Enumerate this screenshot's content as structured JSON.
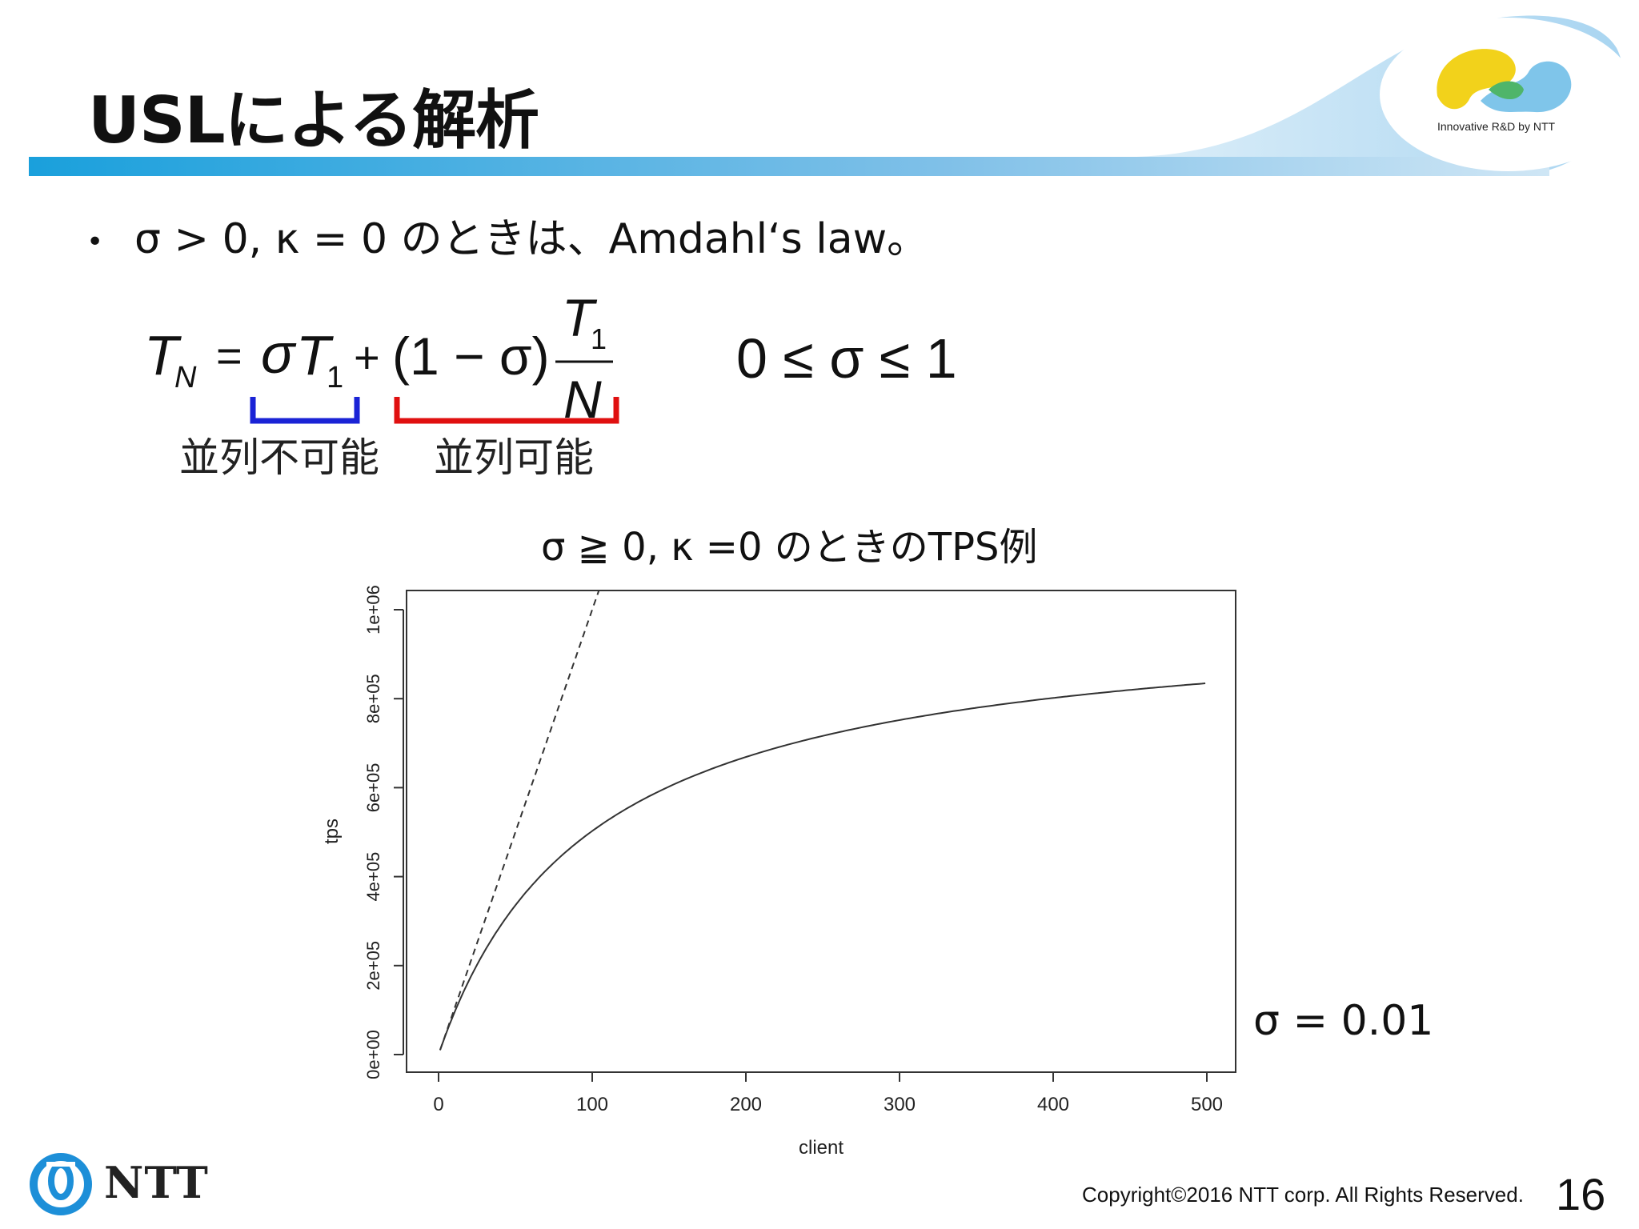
{
  "slide": {
    "title": "USLによる解析",
    "bullet": "σ > 0, κ = 0 のときは、Amdahl‘s law。",
    "formula": {
      "lhs": "T",
      "lhs_sub": "N",
      "eq": "=",
      "sigma": "σ",
      "t1": "T",
      "t1_sub": "1",
      "plus": "+",
      "one_minus_sigma": "(1 − σ)",
      "frac_num": "T",
      "frac_num_sub": "1",
      "frac_den": "N",
      "constraint": "0 ≤ σ ≤ 1",
      "label_serial": "並列不可能",
      "label_parallel": "並列可能",
      "brace_serial_color": "#1a23d6",
      "brace_parallel_color": "#e01010"
    },
    "chart_title": "σ ≧ 0, κ =0 のときのTPS例",
    "sigma_note": "σ = 0.01",
    "copyright": "Copyright©2016  NTT corp. All Rights Reserved.",
    "page_number": "16",
    "brand": {
      "name": "NTT",
      "tagline": "Innovative R&D by NTT",
      "accent": "#1d8fd8"
    }
  },
  "chart_data": {
    "type": "line",
    "xlabel": "client",
    "ylabel": "tps",
    "xlim": [
      0,
      500
    ],
    "ylim": [
      0,
      1000000
    ],
    "x_ticks": [
      "0",
      "100",
      "200",
      "300",
      "400",
      "500"
    ],
    "y_ticks": [
      "0e+00",
      "2e+05",
      "4e+05",
      "6e+05",
      "8e+05",
      "1e+06"
    ],
    "series": [
      {
        "style": "solid",
        "formula": "10000 * x / (1 + 0.01 * (x - 1))",
        "x": [
          1,
          500
        ]
      },
      {
        "style": "dashed",
        "formula": "10000 * x",
        "x": [
          1,
          500
        ]
      }
    ],
    "grid": false
  }
}
